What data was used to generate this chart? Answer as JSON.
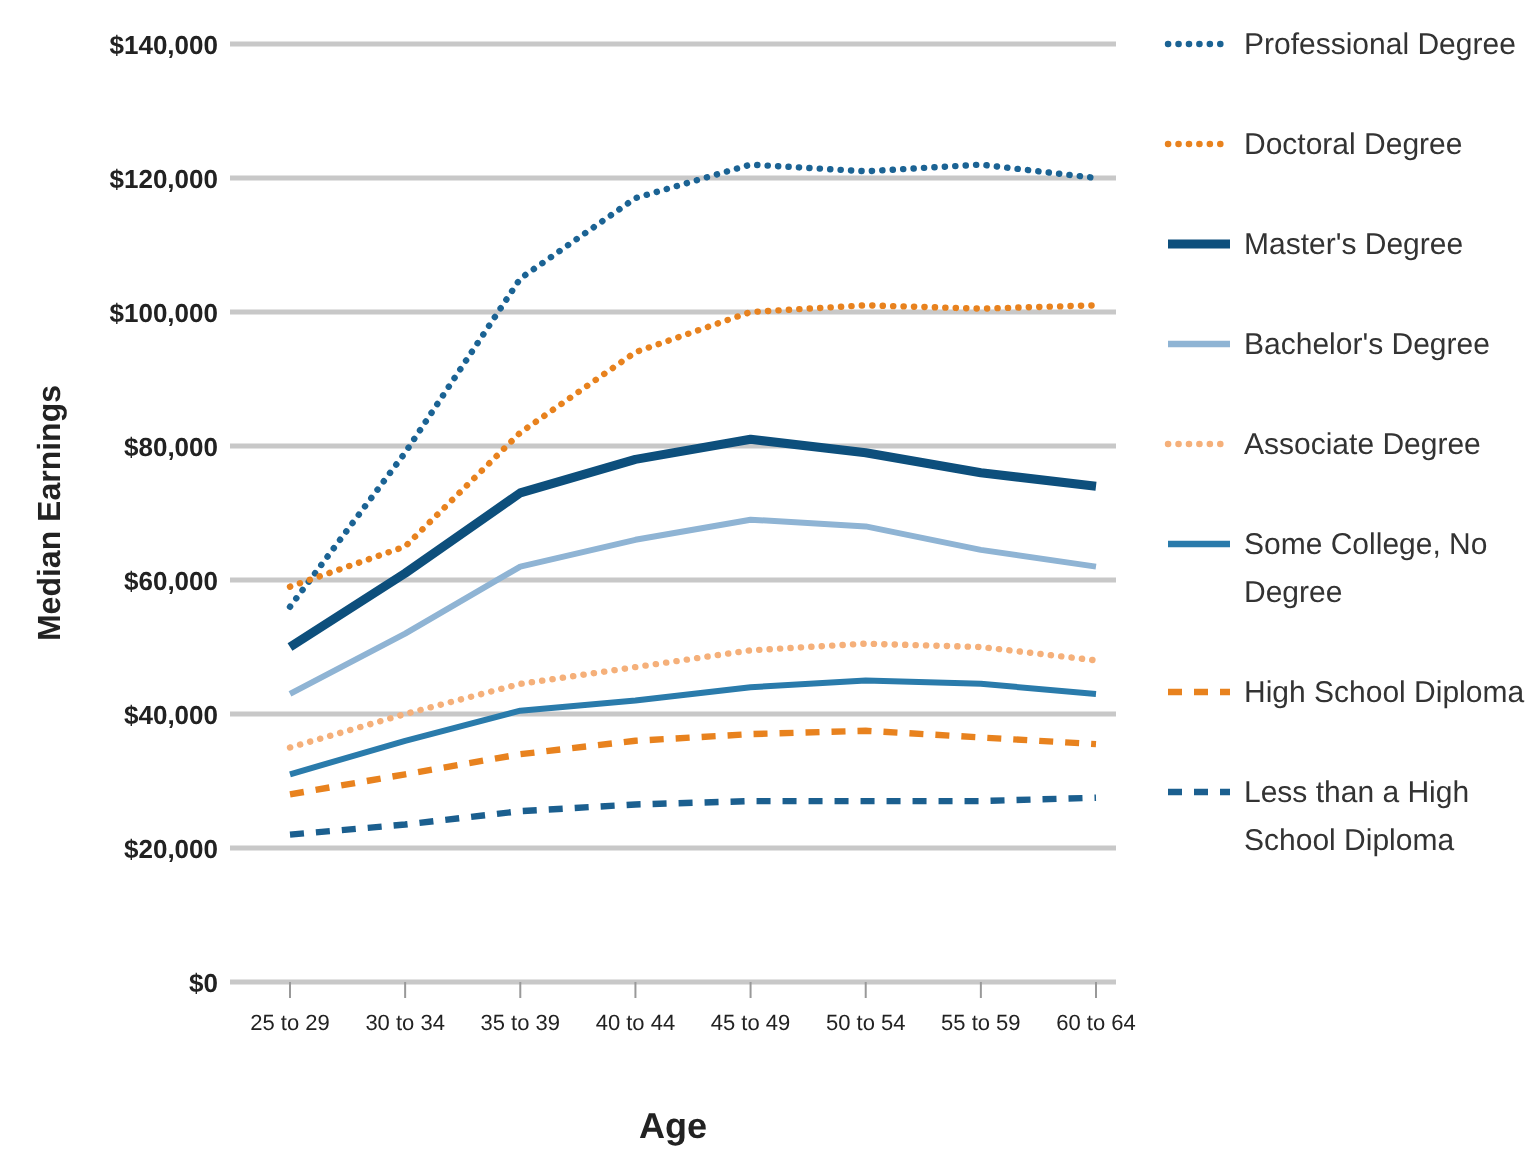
{
  "chart_data": {
    "type": "line",
    "xlabel": "Age",
    "ylabel": "Median Earnings",
    "categories": [
      "25 to 29",
      "30 to 34",
      "35 to 39",
      "40 to 44",
      "45 to 49",
      "50 to 54",
      "55 to 59",
      "60 to 64"
    ],
    "ylim": [
      0,
      140000
    ],
    "yticks": [
      {
        "value": 0,
        "label": "$0"
      },
      {
        "value": 20000,
        "label": "$20,000"
      },
      {
        "value": 40000,
        "label": "$40,000"
      },
      {
        "value": 60000,
        "label": "$60,000"
      },
      {
        "value": 80000,
        "label": "$80,000"
      },
      {
        "value": 100000,
        "label": "$100,000"
      },
      {
        "value": 120000,
        "label": "$120,000"
      },
      {
        "value": 140000,
        "label": "$140,000"
      }
    ],
    "grid": "y",
    "legend": "right",
    "marker": "none",
    "series": [
      {
        "name": "Professional Degree",
        "color": "#1b6394",
        "line_style": "dotted",
        "values": [
          56000,
          79000,
          105000,
          117000,
          122000,
          121000,
          122000,
          120000
        ]
      },
      {
        "name": "Doctoral Degree",
        "color": "#e8821e",
        "line_style": "dotted",
        "values": [
          59000,
          65000,
          82000,
          94000,
          100000,
          101000,
          100500,
          101000
        ]
      },
      {
        "name": "Master's Degree",
        "color": "#0d4f7c",
        "line_style": "solid",
        "values": [
          50000,
          61000,
          73000,
          78000,
          81000,
          79000,
          76000,
          74000
        ]
      },
      {
        "name": "Bachelor's Degree",
        "color": "#8fb4d4",
        "line_style": "solid",
        "values": [
          43000,
          52000,
          62000,
          66000,
          69000,
          68000,
          64500,
          62000
        ]
      },
      {
        "name": "Associate Degree",
        "color": "#f5b07a",
        "line_style": "dotted",
        "values": [
          35000,
          40000,
          44500,
          47000,
          49500,
          50500,
          50000,
          48000
        ]
      },
      {
        "name": "Some College, No Degree",
        "color": "#2a7bab",
        "line_style": "solid",
        "values": [
          31000,
          36000,
          40500,
          42000,
          44000,
          45000,
          44500,
          43000
        ]
      },
      {
        "name": "High School Diploma",
        "color": "#e8821e",
        "line_style": "dashed",
        "values": [
          28000,
          31000,
          34000,
          36000,
          37000,
          37500,
          36500,
          35500
        ]
      },
      {
        "name": "Less than a High School Diploma",
        "color": "#1b5f8f",
        "line_style": "dashed",
        "values": [
          22000,
          23500,
          25500,
          26500,
          27000,
          27000,
          27000,
          27500
        ]
      }
    ]
  }
}
